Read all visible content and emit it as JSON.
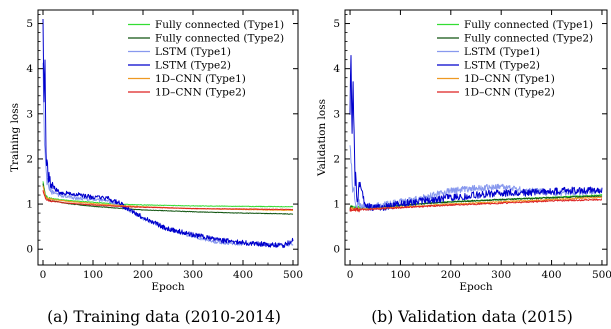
{
  "colors": {
    "fc_type1": "#33dd33",
    "fc_type2": "#115511",
    "lstm_type1": "#8899ee",
    "lstm_type2": "#0000cc",
    "cnn_type1": "#ee9922",
    "cnn_type2": "#dd2222"
  },
  "chart_data": [
    {
      "type": "line",
      "caption": "(a) Training data (2010-2014)",
      "xlabel": "Epoch",
      "ylabel": "Training loss",
      "xlim": [
        -10,
        510
      ],
      "ylim": [
        -0.35,
        5.3
      ],
      "xticks": [
        "0",
        "100",
        "200",
        "300",
        "400",
        "500"
      ],
      "yticks": [
        "0",
        "1",
        "2",
        "3",
        "4",
        "5"
      ],
      "legend_position": "top-right",
      "series": [
        {
          "name": "Fully connected (Type1)",
          "color_key": "fc_type1",
          "x": [
            0,
            5,
            10,
            20,
            50,
            100,
            150,
            200,
            300,
            400,
            500
          ],
          "y": [
            1.5,
            1.2,
            1.14,
            1.12,
            1.08,
            1.04,
            1.0,
            0.98,
            0.96,
            0.95,
            0.94
          ]
        },
        {
          "name": "Fully connected (Type2)",
          "color_key": "fc_type2",
          "x": [
            0,
            5,
            10,
            20,
            50,
            100,
            150,
            200,
            300,
            400,
            500
          ],
          "y": [
            1.45,
            1.16,
            1.1,
            1.07,
            1.01,
            0.95,
            0.91,
            0.87,
            0.83,
            0.8,
            0.78
          ]
        },
        {
          "name": "LSTM (Type1)",
          "color_key": "lstm_type1",
          "x": [
            0,
            3,
            8,
            15,
            30,
            60,
            100,
            130,
            150,
            175,
            200,
            250,
            300,
            350,
            400,
            450,
            500
          ],
          "y": [
            4.1,
            2.3,
            1.5,
            1.3,
            1.2,
            1.14,
            1.1,
            1.06,
            1.0,
            0.85,
            0.68,
            0.45,
            0.28,
            0.15,
            0.12,
            0.1,
            0.1
          ]
        },
        {
          "name": "LSTM (Type2)",
          "color_key": "lstm_type2",
          "x": [
            0,
            2,
            4,
            6,
            10,
            15,
            30,
            60,
            100,
            130,
            150,
            175,
            200,
            250,
            300,
            350,
            400,
            450,
            480,
            500
          ],
          "y": [
            5.05,
            3.4,
            4.3,
            2.1,
            1.65,
            1.45,
            1.28,
            1.22,
            1.15,
            1.12,
            1.04,
            0.85,
            0.7,
            0.45,
            0.32,
            0.2,
            0.15,
            0.1,
            0.08,
            0.2
          ]
        },
        {
          "name": "1D–CNN (Type1)",
          "color_key": "cnn_type1",
          "x": [
            0,
            5,
            10,
            20,
            50,
            100,
            150,
            200,
            300,
            400,
            500
          ],
          "y": [
            1.4,
            1.15,
            1.12,
            1.1,
            1.06,
            1.01,
            0.97,
            0.94,
            0.9,
            0.88,
            0.86
          ]
        },
        {
          "name": "1D–CNN (Type2)",
          "color_key": "cnn_type2",
          "x": [
            0,
            5,
            10,
            20,
            50,
            100,
            150,
            200,
            300,
            400,
            500
          ],
          "y": [
            1.3,
            1.12,
            1.08,
            1.06,
            1.02,
            0.98,
            0.95,
            0.93,
            0.9,
            0.89,
            0.88
          ]
        }
      ]
    },
    {
      "type": "line",
      "caption": "(b) Validation data (2015)",
      "xlabel": "Epoch",
      "ylabel": "Validation loss",
      "xlim": [
        -10,
        510
      ],
      "ylim": [
        -0.35,
        5.3
      ],
      "xticks": [
        "0",
        "100",
        "200",
        "300",
        "400",
        "500"
      ],
      "yticks": [
        "0",
        "1",
        "2",
        "3",
        "4",
        "5"
      ],
      "legend_position": "top-right",
      "series": [
        {
          "name": "Fully connected (Type1)",
          "color_key": "fc_type1",
          "x": [
            0,
            10,
            50,
            100,
            200,
            300,
            400,
            500
          ],
          "y": [
            0.95,
            0.92,
            0.94,
            0.98,
            1.05,
            1.1,
            1.15,
            1.2
          ]
        },
        {
          "name": "Fully connected (Type2)",
          "color_key": "fc_type2",
          "x": [
            0,
            10,
            50,
            100,
            200,
            300,
            400,
            500
          ],
          "y": [
            0.92,
            0.9,
            0.92,
            0.97,
            1.05,
            1.1,
            1.14,
            1.18
          ]
        },
        {
          "name": "LSTM (Type1)",
          "color_key": "lstm_type1",
          "x": [
            0,
            5,
            10,
            20,
            50,
            100,
            150,
            200,
            250,
            300,
            350,
            400,
            450,
            500
          ],
          "y": [
            2.5,
            1.4,
            1.1,
            0.95,
            0.95,
            1.05,
            1.15,
            1.3,
            1.35,
            1.38,
            1.3,
            1.25,
            1.25,
            1.28
          ]
        },
        {
          "name": "LSTM (Type2)",
          "color_key": "lstm_type2",
          "x": [
            0,
            2,
            4,
            6,
            10,
            15,
            20,
            30,
            60,
            100,
            150,
            200,
            250,
            300,
            350,
            400,
            450,
            500
          ],
          "y": [
            3.2,
            4.15,
            2.5,
            3.6,
            1.6,
            1.1,
            1.45,
            0.95,
            0.92,
            1.0,
            1.08,
            1.15,
            1.2,
            1.25,
            1.25,
            1.28,
            1.3,
            1.32
          ]
        },
        {
          "name": "1D–CNN (Type1)",
          "color_key": "cnn_type1",
          "x": [
            0,
            10,
            50,
            100,
            200,
            300,
            400,
            500
          ],
          "y": [
            0.9,
            0.88,
            0.9,
            0.93,
            1.0,
            1.05,
            1.1,
            1.15
          ]
        },
        {
          "name": "1D–CNN (Type2)",
          "color_key": "cnn_type2",
          "x": [
            0,
            10,
            50,
            100,
            200,
            300,
            400,
            500
          ],
          "y": [
            0.88,
            0.87,
            0.89,
            0.92,
            0.98,
            1.02,
            1.07,
            1.1
          ]
        }
      ]
    }
  ]
}
